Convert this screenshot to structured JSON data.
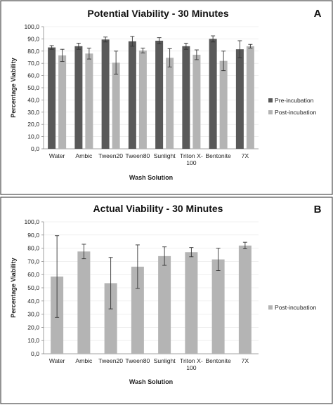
{
  "figure": {
    "colors": {
      "pre": "#595959",
      "post": "#b4b4b4",
      "border": "#4d4d4d"
    }
  },
  "chart_data": [
    {
      "type": "bar",
      "panel_letter": "A",
      "title": "Potential Viability - 30 Minutes",
      "xlabel": "Wash Solution",
      "ylabel": "Percentage Viability",
      "ylim": [
        0,
        100
      ],
      "yticks": [
        "0,0",
        "10,0",
        "20,0",
        "30,0",
        "40,0",
        "50,0",
        "60,0",
        "70,0",
        "80,0",
        "90,0",
        "100,0"
      ],
      "categories": [
        [
          "Water"
        ],
        [
          "Ambic"
        ],
        [
          "Tween20"
        ],
        [
          "Tween80"
        ],
        [
          "Sunlight"
        ],
        [
          "Triton X-",
          "100"
        ],
        [
          "Bentonite"
        ],
        [
          "7X"
        ]
      ],
      "legend_position": "right",
      "series": [
        {
          "name": "Pre-incubation",
          "color": "#595959",
          "values": [
            83,
            84,
            89.5,
            88,
            88.5,
            84,
            90,
            81.5
          ],
          "errors": [
            1.5,
            2.5,
            2,
            4,
            2.5,
            2.5,
            2.5,
            7
          ]
        },
        {
          "name": "Post-incubation",
          "color": "#b4b4b4",
          "values": [
            76.5,
            78,
            70.5,
            80.5,
            74.5,
            77,
            72,
            84
          ],
          "errors": [
            5,
            4.5,
            9.5,
            2,
            7.5,
            4,
            8,
            1.5
          ]
        }
      ]
    },
    {
      "type": "bar",
      "panel_letter": "B",
      "title": "Actual Viability - 30 Minutes",
      "xlabel": "Wash Solution",
      "ylabel": "Percentage Viability",
      "ylim": [
        0,
        100
      ],
      "yticks": [
        "0,0",
        "10,0",
        "20,0",
        "30,0",
        "40,0",
        "50,0",
        "60,0",
        "70,0",
        "80,0",
        "90,0",
        "100,0"
      ],
      "categories": [
        [
          "Water"
        ],
        [
          "Ambic"
        ],
        [
          "Tween20"
        ],
        [
          "Tween80"
        ],
        [
          "Sunlight"
        ],
        [
          "Triton X-",
          "100"
        ],
        [
          "Bentonite"
        ],
        [
          "7X"
        ]
      ],
      "legend_position": "right",
      "series": [
        {
          "name": "Post-incubation",
          "color": "#b4b4b4",
          "values": [
            58.5,
            77.5,
            53.5,
            66,
            74,
            77,
            71.5,
            82
          ],
          "errors": [
            31,
            5.5,
            19.5,
            16.5,
            7,
            3.5,
            8.5,
            2.5
          ]
        }
      ]
    }
  ]
}
